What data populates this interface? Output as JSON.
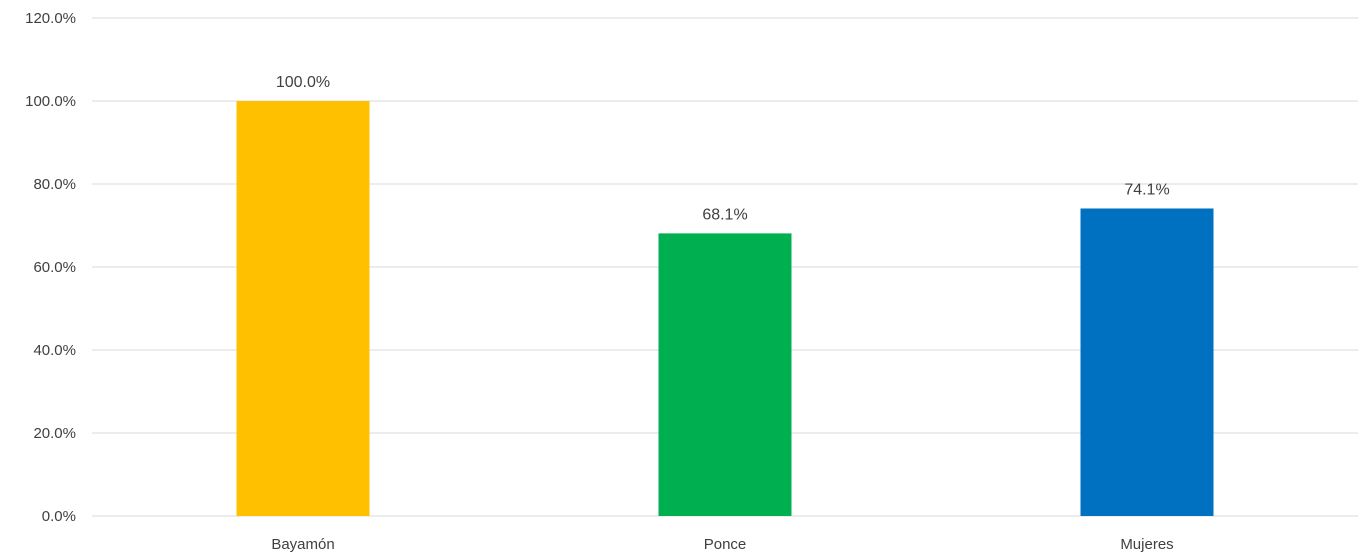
{
  "chart_data": {
    "type": "bar",
    "categories": [
      "Bayamón",
      "Ponce",
      "Mujeres"
    ],
    "values": [
      100.0,
      68.1,
      74.1
    ],
    "data_labels": [
      "100.0%",
      "68.1%",
      "74.1%"
    ],
    "colors": [
      "#ffc000",
      "#00b050",
      "#0070c0"
    ],
    "ylim": [
      0,
      120
    ],
    "yticks": [
      0,
      20,
      40,
      60,
      80,
      100,
      120
    ],
    "ytick_labels": [
      "0.0%",
      "20.0%",
      "40.0%",
      "60.0%",
      "80.0%",
      "100.0%",
      "120.0%"
    ],
    "grid": true,
    "legend": "none"
  }
}
